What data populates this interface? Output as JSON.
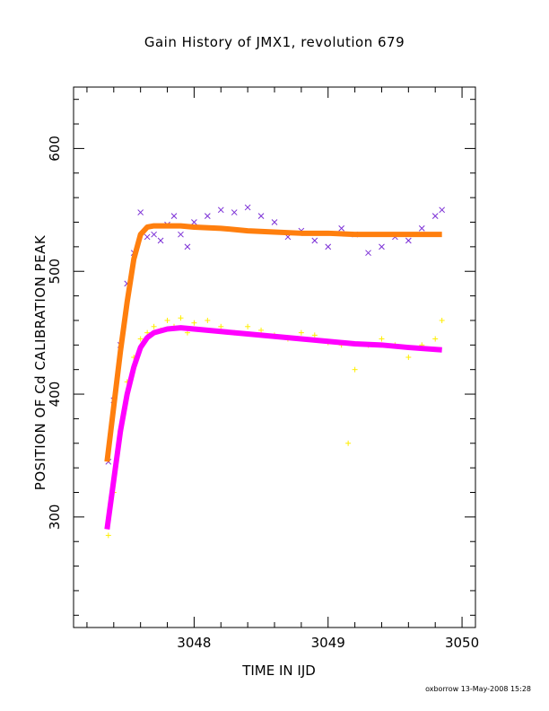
{
  "chart_data": {
    "type": "scatter",
    "title": "Gain History of JMX1, revolution 679",
    "xlabel": "TIME IN IJD",
    "ylabel": "POSITION OF Cd CALIBRATION PEAK",
    "xlim": [
      3047.1,
      3050.1
    ],
    "ylim": [
      210,
      650
    ],
    "x_ticks": [
      3048,
      3049,
      3050
    ],
    "y_ticks": [
      300,
      400,
      500,
      600
    ],
    "grid": false,
    "series": [
      {
        "marker": "x",
        "color": "#7b2fd6",
        "x": [
          3047.36,
          3047.4,
          3047.45,
          3047.5,
          3047.55,
          3047.6,
          3047.65,
          3047.7,
          3047.75,
          3047.8,
          3047.85,
          3047.9,
          3047.95,
          3048.0,
          3048.1,
          3048.2,
          3048.3,
          3048.4,
          3048.5,
          3048.6,
          3048.7,
          3048.8,
          3048.9,
          3049.0,
          3049.1,
          3049.2,
          3049.3,
          3049.4,
          3049.5,
          3049.6,
          3049.7,
          3049.8,
          3049.85
        ],
        "y": [
          345,
          395,
          440,
          490,
          515,
          548,
          528,
          530,
          525,
          538,
          545,
          530,
          520,
          540,
          545,
          550,
          548,
          552,
          545,
          540,
          528,
          533,
          525,
          520,
          535,
          530,
          515,
          520,
          528,
          525,
          535,
          545,
          550
        ]
      },
      {
        "marker": "+",
        "color": "#ffee00",
        "x": [
          3047.36,
          3047.4,
          3047.45,
          3047.5,
          3047.55,
          3047.6,
          3047.65,
          3047.7,
          3047.75,
          3047.8,
          3047.85,
          3047.9,
          3047.95,
          3048.0,
          3048.1,
          3048.2,
          3048.3,
          3048.4,
          3048.5,
          3048.6,
          3048.7,
          3048.8,
          3048.9,
          3049.0,
          3049.1,
          3049.15,
          3049.2,
          3049.3,
          3049.4,
          3049.5,
          3049.6,
          3049.7,
          3049.8,
          3049.85
        ],
        "y": [
          285,
          320,
          370,
          410,
          430,
          445,
          450,
          455,
          452,
          460,
          455,
          462,
          450,
          458,
          460,
          455,
          450,
          455,
          452,
          448,
          445,
          450,
          448,
          442,
          440,
          360,
          420,
          440,
          445,
          440,
          430,
          440,
          445,
          460
        ]
      },
      {
        "marker": "line",
        "color": "#ff7f0e",
        "x": [
          3047.35,
          3047.4,
          3047.45,
          3047.5,
          3047.55,
          3047.6,
          3047.65,
          3047.7,
          3047.8,
          3047.9,
          3048.0,
          3048.2,
          3048.4,
          3048.6,
          3048.8,
          3049.0,
          3049.2,
          3049.4,
          3049.6,
          3049.85
        ],
        "y": [
          345,
          390,
          435,
          475,
          510,
          530,
          536,
          537,
          537,
          537,
          536,
          535,
          533,
          532,
          531,
          531,
          530,
          530,
          530,
          530
        ]
      },
      {
        "marker": "line",
        "color": "#ff00ff",
        "x": [
          3047.35,
          3047.4,
          3047.45,
          3047.5,
          3047.55,
          3047.6,
          3047.65,
          3047.7,
          3047.8,
          3047.9,
          3048.0,
          3048.2,
          3048.4,
          3048.6,
          3048.8,
          3049.0,
          3049.2,
          3049.4,
          3049.6,
          3049.85
        ],
        "y": [
          290,
          330,
          370,
          400,
          422,
          438,
          446,
          450,
          453,
          454,
          453,
          451,
          449,
          447,
          445,
          443,
          441,
          440,
          438,
          436
        ]
      }
    ]
  },
  "footer": "oxborrow 13-May-2008 15:28"
}
